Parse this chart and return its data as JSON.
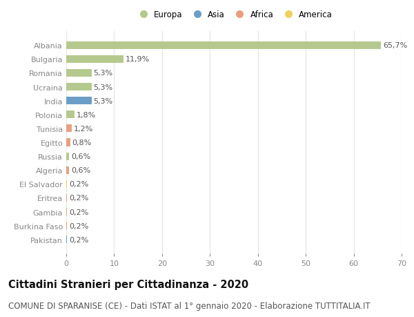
{
  "countries": [
    "Albania",
    "Bulgaria",
    "Romania",
    "Ucraina",
    "India",
    "Polonia",
    "Tunisia",
    "Egitto",
    "Russia",
    "Algeria",
    "El Salvador",
    "Eritrea",
    "Gambia",
    "Burkina Faso",
    "Pakistan"
  ],
  "values": [
    65.7,
    11.9,
    5.3,
    5.3,
    5.3,
    1.8,
    1.2,
    0.8,
    0.6,
    0.6,
    0.2,
    0.2,
    0.2,
    0.2,
    0.2
  ],
  "labels": [
    "65,7%",
    "11,9%",
    "5,3%",
    "5,3%",
    "5,3%",
    "1,8%",
    "1,2%",
    "0,8%",
    "0,6%",
    "0,6%",
    "0,2%",
    "0,2%",
    "0,2%",
    "0,2%",
    "0,2%"
  ],
  "continents": [
    "Europa",
    "Europa",
    "Europa",
    "Europa",
    "Asia",
    "Europa",
    "Africa",
    "Africa",
    "Europa",
    "Africa",
    "America",
    "Africa",
    "Africa",
    "Africa",
    "Asia"
  ],
  "continent_colors": {
    "Europa": "#b5c98e",
    "Asia": "#6b9ec7",
    "Africa": "#e8a080",
    "America": "#f0d060"
  },
  "legend_order": [
    "Europa",
    "Asia",
    "Africa",
    "America"
  ],
  "xlim": [
    0,
    70
  ],
  "xticks": [
    0,
    10,
    20,
    30,
    40,
    50,
    60,
    70
  ],
  "title": "Cittadini Stranieri per Cittadinanza - 2020",
  "subtitle": "COMUNE DI SPARANISE (CE) - Dati ISTAT al 1° gennaio 2020 - Elaborazione TUTTITALIA.IT",
  "background_color": "#ffffff",
  "grid_color": "#e8e8e8",
  "bar_height": 0.55,
  "title_fontsize": 10.5,
  "subtitle_fontsize": 8.5,
  "label_fontsize": 8,
  "tick_fontsize": 8,
  "legend_fontsize": 8.5
}
